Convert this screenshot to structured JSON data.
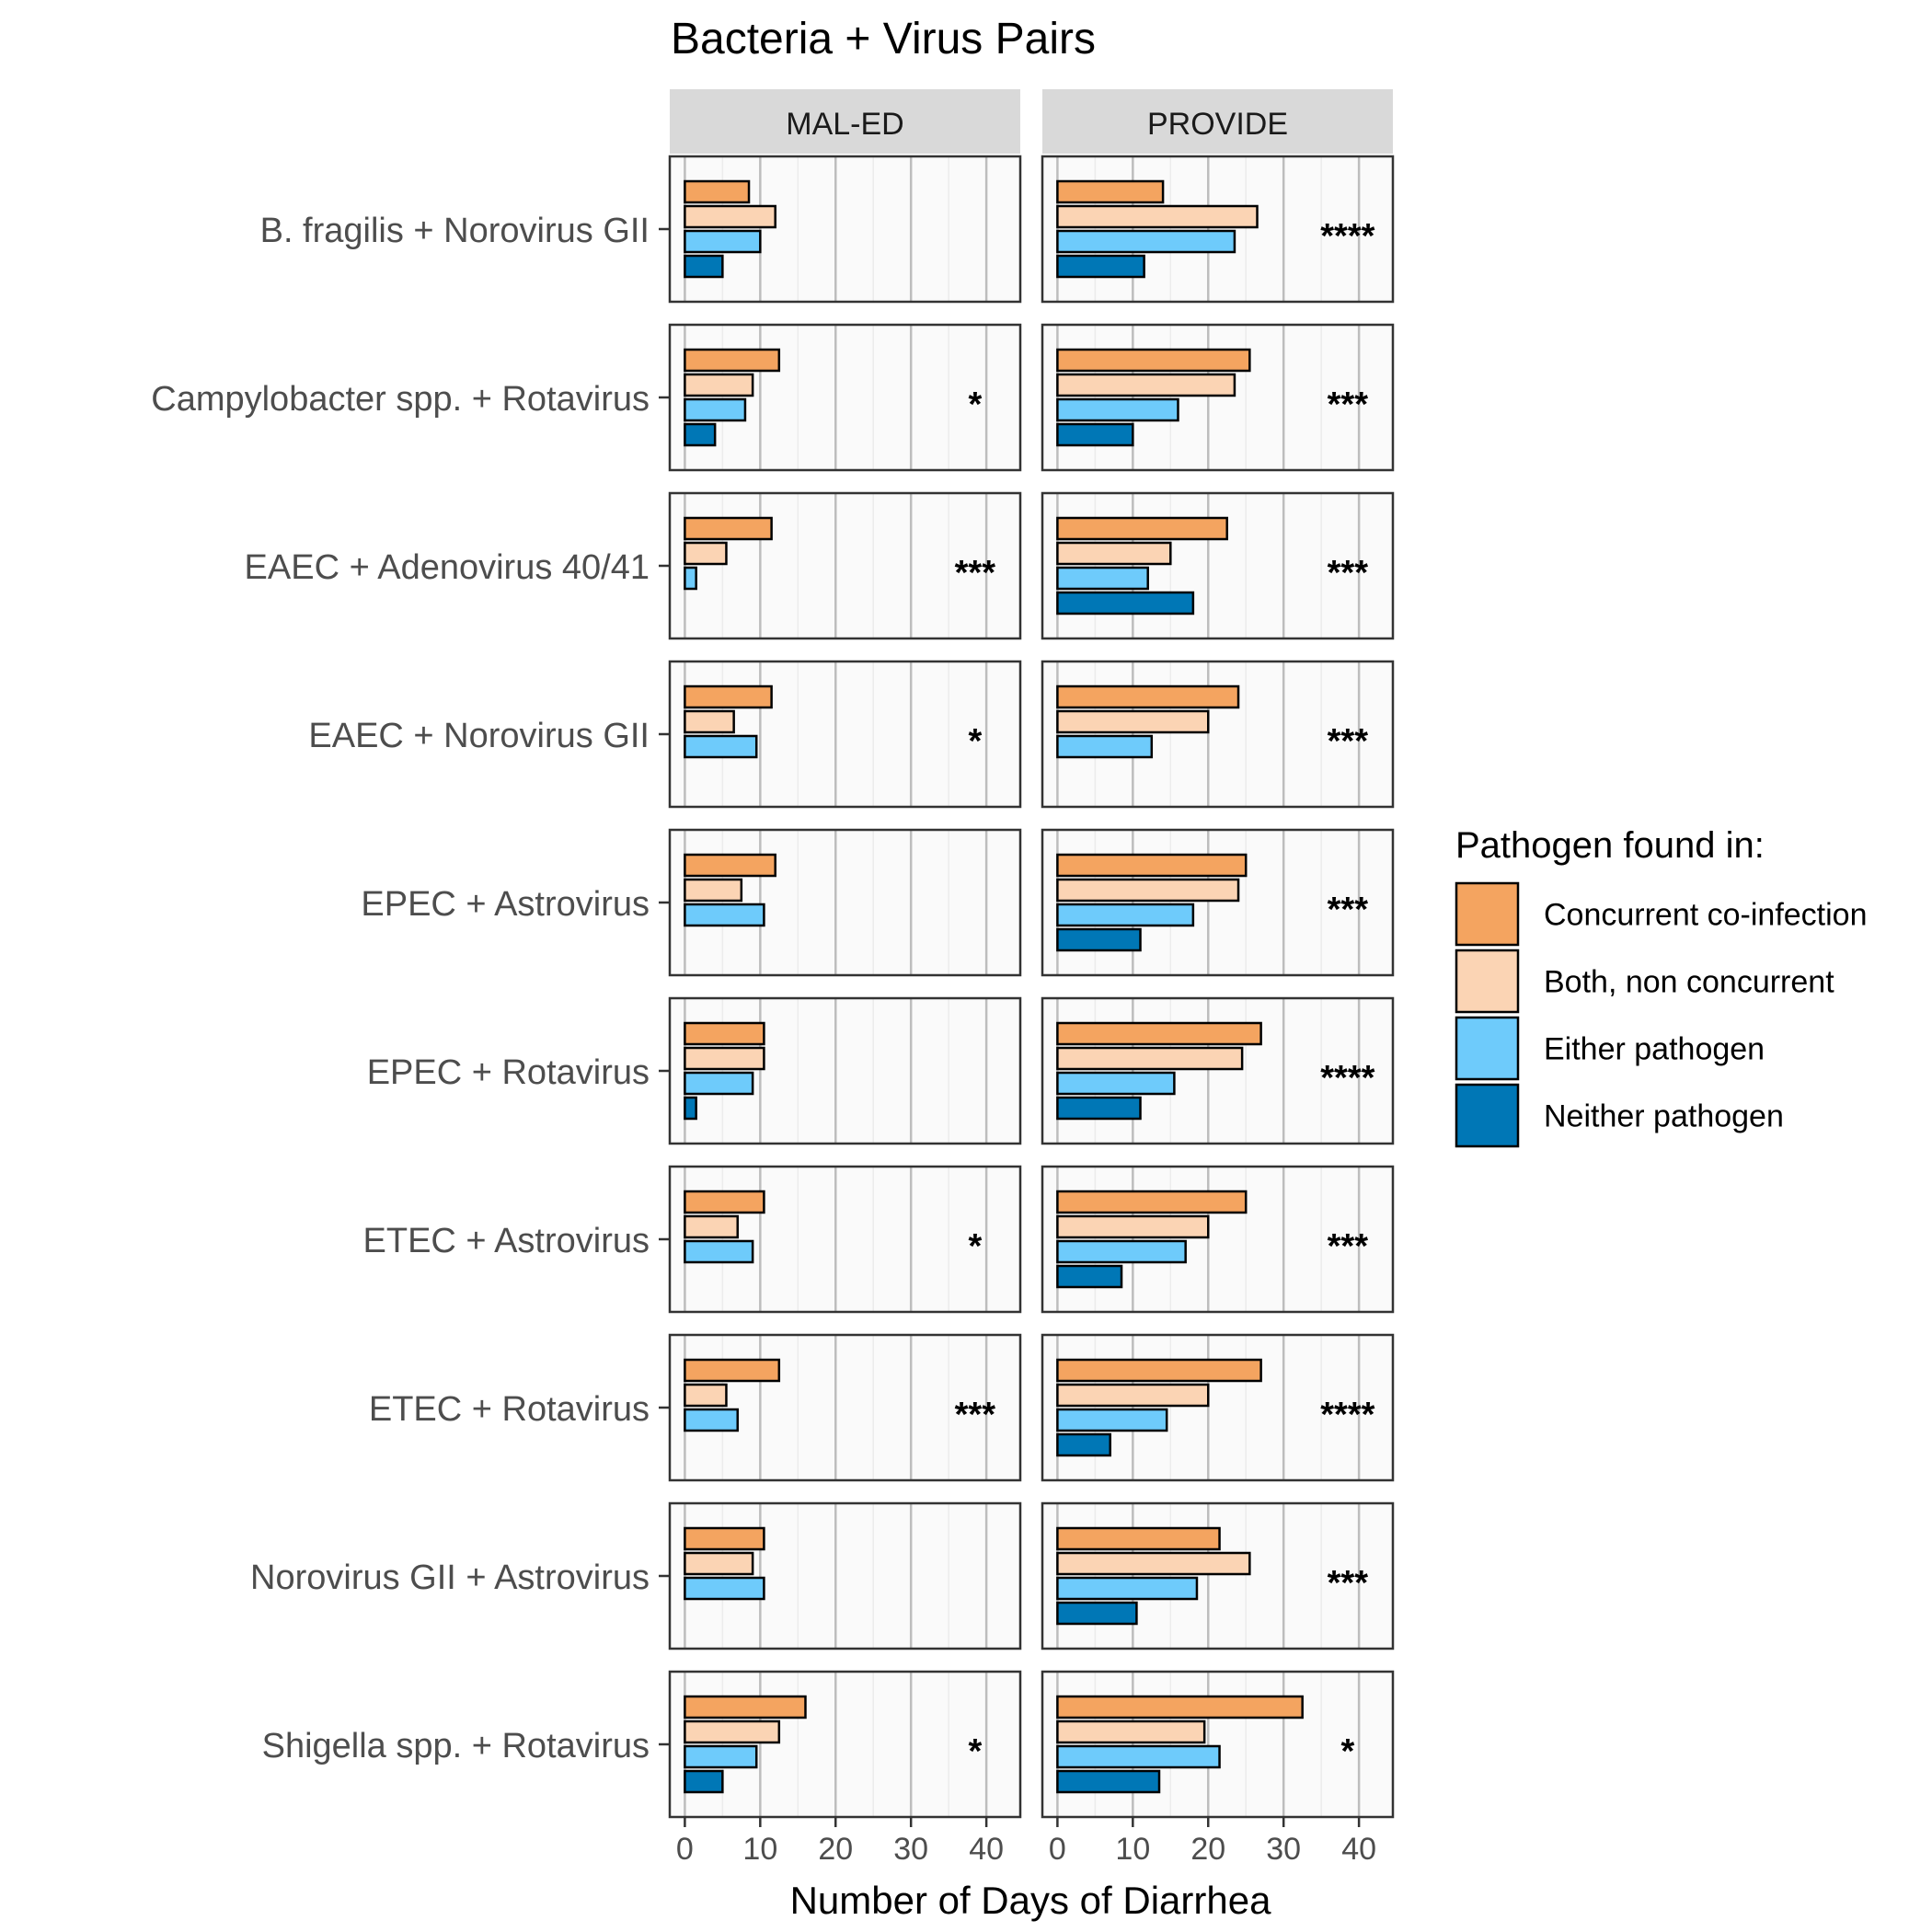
{
  "chart_data": {
    "type": "bar",
    "orientation": "horizontal",
    "title": "Bacteria + Virus Pairs",
    "xlabel": "Number of Days of Diarrhea",
    "ylabel": "",
    "xlim": [
      -2,
      44.5
    ],
    "xticks": [
      0,
      10,
      20,
      30,
      40
    ],
    "x_tick_labels": [
      "0",
      "10",
      "20",
      "30",
      "40"
    ],
    "grid": true,
    "legend": {
      "title": "Pathogen found in:",
      "placement": "right",
      "entries": [
        "Concurrent co-infection",
        "Both, non concurrent",
        "Either pathogen",
        "Neither pathogen"
      ]
    },
    "colors": {
      "Concurrent co-infection": "#f4a460",
      "Both, non concurrent": "#fbd4b4",
      "Either pathogen": "#6ecbfb",
      "Neither pathogen": "#0077b6",
      "strip": "#d9d9d9",
      "panel_bg": "#fafafa"
    },
    "series_order": [
      "Concurrent co-infection",
      "Both, non concurrent",
      "Either pathogen",
      "Neither pathogen"
    ],
    "categories": [
      "B. fragilis + Norovirus GII",
      "Campylobacter spp. + Rotavirus",
      "EAEC + Adenovirus 40/41",
      "EAEC + Norovirus GII",
      "EPEC + Astrovirus",
      "EPEC + Rotavirus",
      "ETEC + Astrovirus",
      "ETEC + Rotavirus",
      "Norovirus GII + Astrovirus",
      "Shigella spp. + Rotavirus"
    ],
    "facets": [
      {
        "name": "MAL-ED",
        "values": [
          [
            8.5,
            12,
            10,
            5
          ],
          [
            12.5,
            9,
            8,
            4
          ],
          [
            11.5,
            5.5,
            1.5,
            null
          ],
          [
            11.5,
            6.5,
            9.5,
            null
          ],
          [
            12,
            7.5,
            10.5,
            null
          ],
          [
            10.5,
            10.5,
            9,
            1.5
          ],
          [
            10.5,
            7,
            9,
            null
          ],
          [
            12.5,
            5.5,
            7,
            null
          ],
          [
            10.5,
            9,
            10.5,
            null
          ],
          [
            16,
            12.5,
            9.5,
            5
          ]
        ],
        "significance": [
          "",
          "*",
          "***",
          "*",
          "",
          "",
          "*",
          "***",
          "",
          "*"
        ]
      },
      {
        "name": "PROVIDE",
        "values": [
          [
            14,
            26.5,
            23.5,
            11.5
          ],
          [
            25.5,
            23.5,
            16,
            10
          ],
          [
            22.5,
            15,
            12,
            18
          ],
          [
            24,
            20,
            12.5,
            null
          ],
          [
            25,
            24,
            18,
            11
          ],
          [
            27,
            24.5,
            15.5,
            11
          ],
          [
            25,
            20,
            17,
            8.5
          ],
          [
            27,
            20,
            14.5,
            7
          ],
          [
            21.5,
            25.5,
            18.5,
            10.5
          ],
          [
            32.5,
            19.5,
            21.5,
            13.5
          ]
        ],
        "significance": [
          "****",
          "***",
          "***",
          "***",
          "***",
          "****",
          "***",
          "****",
          "***",
          "*"
        ]
      }
    ]
  }
}
